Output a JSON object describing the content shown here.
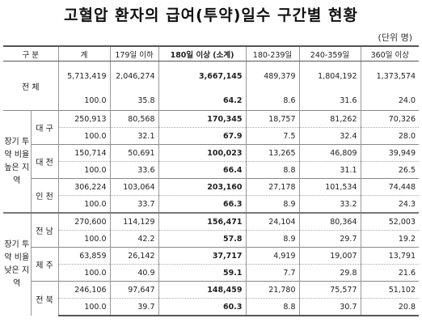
{
  "title": "고혈압 환자의 급여(투약)일수 구간별 현황",
  "unit": "(단위 명)",
  "headers": [
    "구  분",
    "계",
    "179일 이하",
    "180일 이상 (소계)",
    "180-239일",
    "240-359일",
    "360일 이상"
  ],
  "total": {
    "label": "전  체",
    "values": [
      "5,713,419",
      "2,046,274",
      "3,667,145",
      "489,379",
      "1,804,192",
      "1,373,574"
    ],
    "pcts": [
      "100.0",
      "35.8",
      "64.2",
      "8.6",
      "31.6",
      "24.0"
    ]
  },
  "groups": [
    {
      "label": "장기 투약 비율 높은 지역",
      "rows": [
        {
          "region": "대 구",
          "values": [
            "250,913",
            "80,568",
            "170,345",
            "18,757",
            "81,262",
            "70,326"
          ],
          "pcts": [
            "100.0",
            "32.1",
            "67.9",
            "7.5",
            "32.4",
            "28.0"
          ]
        },
        {
          "region": "대 전",
          "values": [
            "150,714",
            "50,691",
            "100,023",
            "13,265",
            "46,809",
            "39,949"
          ],
          "pcts": [
            "100.0",
            "33.6",
            "66.4",
            "8.8",
            "31.1",
            "26.5"
          ]
        },
        {
          "region": "인 천",
          "values": [
            "306,224",
            "103,064",
            "203,160",
            "27,178",
            "101,534",
            "74,448"
          ],
          "pcts": [
            "100.0",
            "33.7",
            "66.3",
            "8.9",
            "33.2",
            "24.3"
          ]
        }
      ]
    },
    {
      "label": "장기 투약 비율 낮은 지역",
      "rows": [
        {
          "region": "전 남",
          "values": [
            "270,600",
            "114,129",
            "156,471",
            "24,104",
            "80,364",
            "52,003"
          ],
          "pcts": [
            "100.0",
            "42.2",
            "57.8",
            "8.9",
            "29.7",
            "19.2"
          ]
        },
        {
          "region": "제 주",
          "values": [
            "63,859",
            "26,142",
            "37,717",
            "4,919",
            "19,007",
            "13,791"
          ],
          "pcts": [
            "100.0",
            "40.9",
            "59.1",
            "7.7",
            "29.8",
            "21.6"
          ]
        },
        {
          "region": "전 북",
          "values": [
            "246,106",
            "97,647",
            "148,459",
            "21,780",
            "75,577",
            "51,102"
          ],
          "pcts": [
            "100.0",
            "39.7",
            "60.3",
            "8.8",
            "30.7",
            "20.8"
          ]
        }
      ]
    }
  ]
}
